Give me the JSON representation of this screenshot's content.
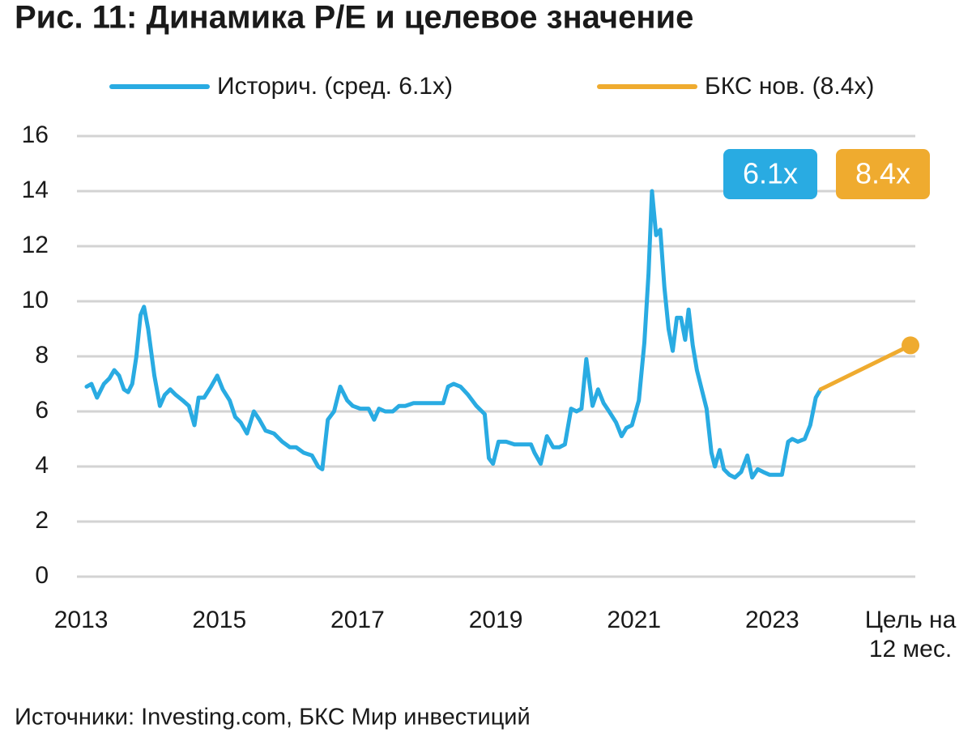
{
  "chart_data": {
    "type": "line",
    "title": "Рис. 11: Динамика P/E и целевое значение",
    "source": "Источники: Investing.com, БКС Мир инвестиций",
    "xlim": [
      2012.94,
      2025.07
    ],
    "xticks": [
      2013,
      2015,
      2017,
      2019,
      2021,
      2023,
      {
        "value": 2025,
        "label": "Цель на\n12 мес."
      }
    ],
    "ylim": [
      0,
      16
    ],
    "yticks": [
      0,
      2,
      4,
      6,
      8,
      10,
      12,
      14,
      16
    ],
    "grid": true,
    "legend": "top",
    "series": [
      {
        "name": "Историч. (сред. 6.1x)",
        "color": "#29abe2",
        "x": [
          2013.08,
          2013.15,
          2013.23,
          2013.33,
          2013.41,
          2013.48,
          2013.55,
          2013.62,
          2013.68,
          2013.74,
          2013.8,
          2013.86,
          2013.91,
          2013.97,
          2014.06,
          2014.14,
          2014.21,
          2014.29,
          2014.37,
          2014.47,
          2014.56,
          2014.64,
          2014.7,
          2014.78,
          2014.88,
          2014.97,
          2015.05,
          2015.15,
          2015.23,
          2015.31,
          2015.4,
          2015.5,
          2015.58,
          2015.67,
          2015.79,
          2015.91,
          2016.02,
          2016.11,
          2016.22,
          2016.34,
          2016.43,
          2016.49,
          2016.57,
          2016.66,
          2016.75,
          2016.85,
          2016.93,
          2017.04,
          2017.16,
          2017.24,
          2017.31,
          2017.4,
          2017.51,
          2017.6,
          2017.69,
          2017.81,
          2017.92,
          2018.04,
          2018.16,
          2018.24,
          2018.31,
          2018.39,
          2018.49,
          2018.6,
          2018.72,
          2018.84,
          2018.9,
          2018.96,
          2019.04,
          2019.15,
          2019.27,
          2019.39,
          2019.51,
          2019.56,
          2019.65,
          2019.74,
          2019.83,
          2019.92,
          2020.0,
          2020.09,
          2020.17,
          2020.24,
          2020.31,
          2020.4,
          2020.48,
          2020.56,
          2020.64,
          2020.74,
          2020.82,
          2020.89,
          2020.97,
          2021.07,
          2021.15,
          2021.21,
          2021.26,
          2021.32,
          2021.38,
          2021.44,
          2021.5,
          2021.56,
          2021.62,
          2021.68,
          2021.74,
          2021.79,
          2021.85,
          2021.91,
          2021.98,
          2022.05,
          2022.12,
          2022.17,
          2022.24,
          2022.3,
          2022.38,
          2022.46,
          2022.55,
          2022.64,
          2022.71,
          2022.79,
          2022.87,
          2022.96,
          2023.06,
          2023.14,
          2023.23,
          2023.29,
          2023.37,
          2023.47,
          2023.55,
          2023.63,
          2023.7
        ],
        "values": [
          6.9,
          7.0,
          6.5,
          7.0,
          7.2,
          7.5,
          7.3,
          6.8,
          6.7,
          7.0,
          8.0,
          9.5,
          9.8,
          9.0,
          7.3,
          6.2,
          6.6,
          6.8,
          6.6,
          6.4,
          6.2,
          5.5,
          6.5,
          6.5,
          6.9,
          7.3,
          6.8,
          6.4,
          5.8,
          5.6,
          5.2,
          6.0,
          5.7,
          5.3,
          5.2,
          4.9,
          4.7,
          4.7,
          4.5,
          4.4,
          4.0,
          3.9,
          5.7,
          6.0,
          6.9,
          6.4,
          6.2,
          6.1,
          6.1,
          5.7,
          6.1,
          6.0,
          6.0,
          6.2,
          6.2,
          6.3,
          6.3,
          6.3,
          6.3,
          6.3,
          6.9,
          7.0,
          6.9,
          6.6,
          6.2,
          5.9,
          4.3,
          4.1,
          4.9,
          4.9,
          4.8,
          4.8,
          4.8,
          4.5,
          4.1,
          5.1,
          4.7,
          4.7,
          4.8,
          6.1,
          6.0,
          6.1,
          7.9,
          6.2,
          6.8,
          6.3,
          6.0,
          5.6,
          5.1,
          5.4,
          5.5,
          6.4,
          8.5,
          11.0,
          14.0,
          12.4,
          12.6,
          10.5,
          9.0,
          8.2,
          9.4,
          9.4,
          8.6,
          9.7,
          8.4,
          7.5,
          6.8,
          6.1,
          4.5,
          4.0,
          4.6,
          3.9,
          3.7,
          3.6,
          3.8,
          4.4,
          3.6,
          3.9,
          3.8,
          3.7,
          3.7,
          3.7,
          4.9,
          5.0,
          4.9,
          5.0,
          5.5,
          6.5,
          6.8
        ]
      },
      {
        "name": "БКС нов. (8.4x)",
        "color": "#efab2f",
        "markers": true,
        "x": [
          2023.7,
          2025
        ],
        "values": [
          6.8,
          8.4
        ]
      }
    ],
    "annotations": [
      {
        "text": "6.1x",
        "color": "#29abe2"
      },
      {
        "text": "8.4x",
        "color": "#efab2f"
      }
    ]
  }
}
